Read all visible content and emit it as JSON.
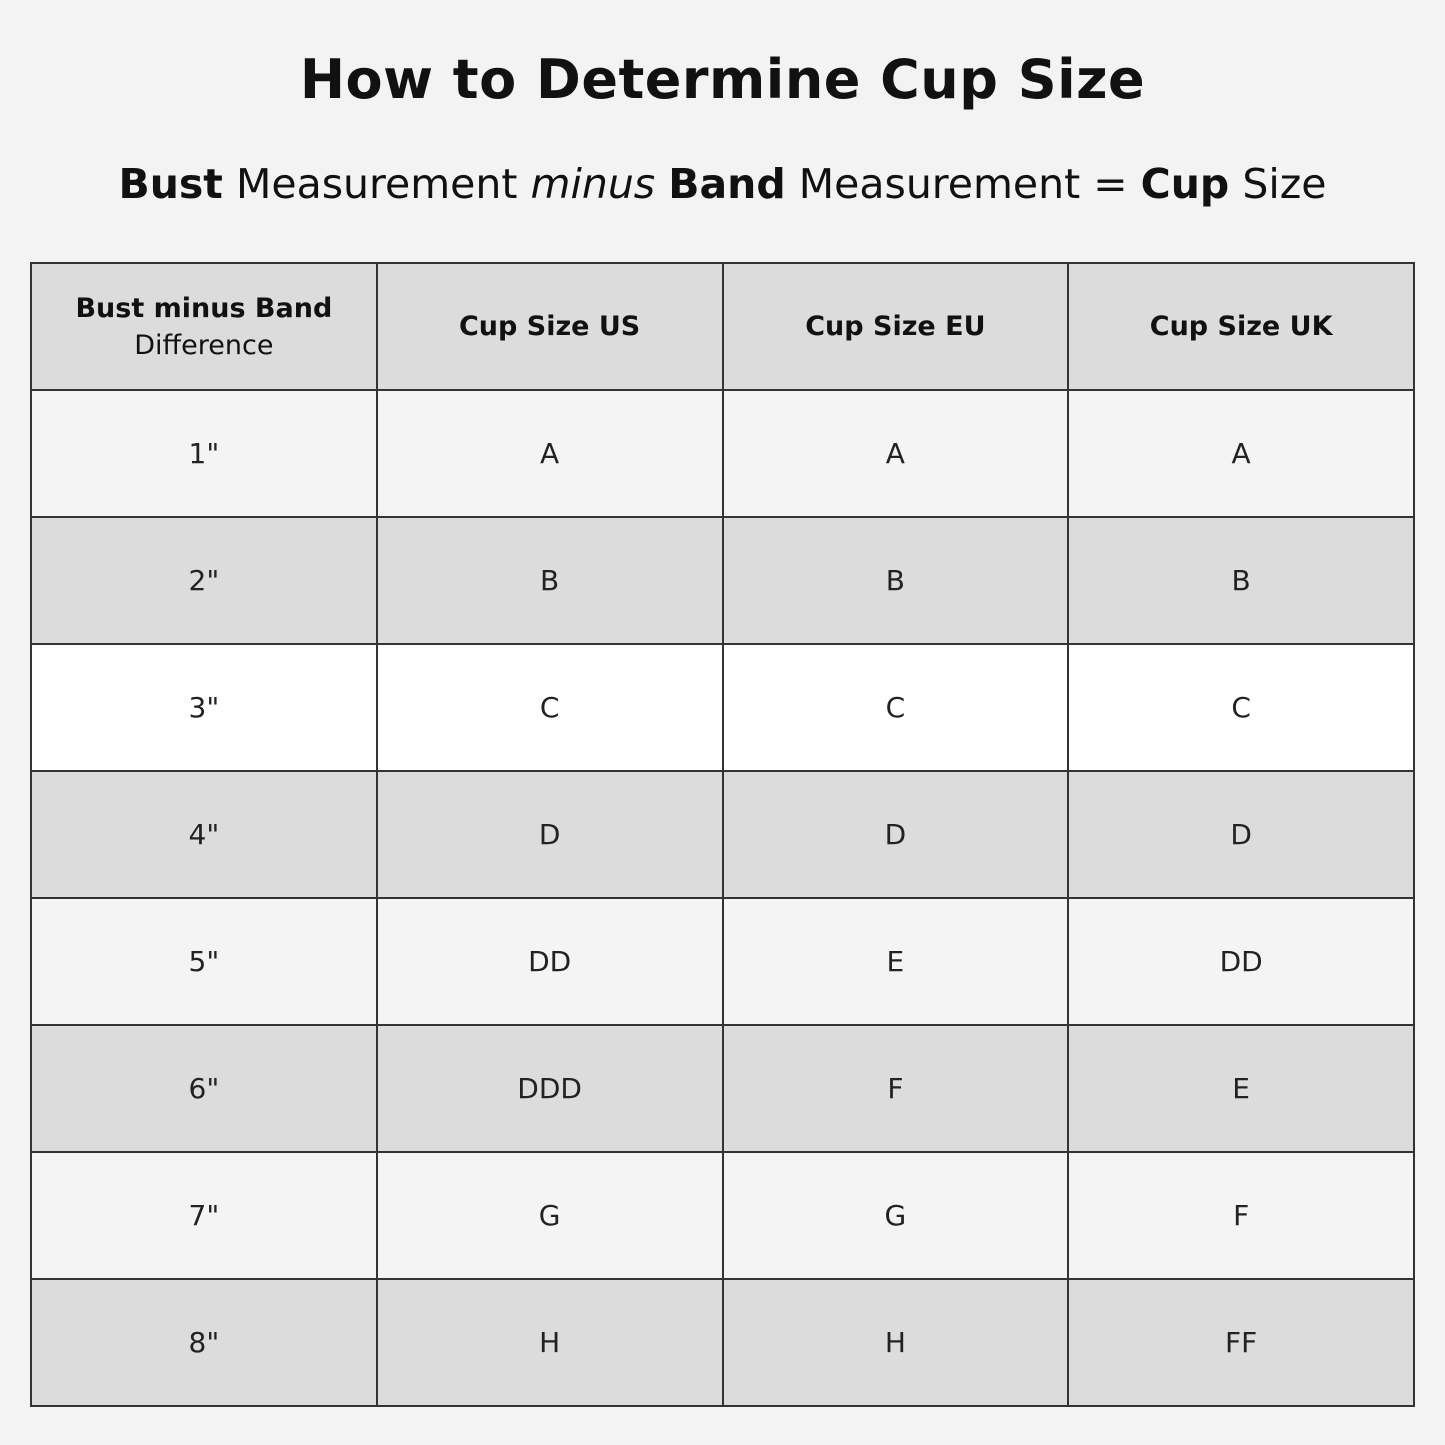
{
  "title": "How to Determine Cup Size",
  "formula": {
    "part1_bold": "Bust",
    "part2": "Measurement",
    "part3_italic": "minus",
    "part4_bold": "Band",
    "part5": "Measurement =",
    "part6_bold": "Cup",
    "part7": "Size"
  },
  "table": {
    "headers": [
      {
        "main": "Bust minus Band",
        "sub": "Difference"
      },
      {
        "main": "Cup Size US"
      },
      {
        "main": "Cup Size EU"
      },
      {
        "main": "Cup Size UK"
      }
    ],
    "rows": [
      [
        "1\"",
        "A",
        "A",
        "A"
      ],
      [
        "2\"",
        "B",
        "B",
        "B"
      ],
      [
        "3\"",
        "C",
        "C",
        "C"
      ],
      [
        "4\"",
        "D",
        "D",
        "D"
      ],
      [
        "5\"",
        "DD",
        "E",
        "DD"
      ],
      [
        "6\"",
        "DDD",
        "F",
        "E"
      ],
      [
        "7\"",
        "G",
        "G",
        "F"
      ],
      [
        "8\"",
        "H",
        "H",
        "FF"
      ]
    ],
    "row_colors": [
      "#f4f4f4",
      "#dcdcdc",
      "#ffffff",
      "#dcdcdc",
      "#f4f4f4",
      "#dcdcdc",
      "#f4f4f4",
      "#dcdcdc"
    ]
  }
}
